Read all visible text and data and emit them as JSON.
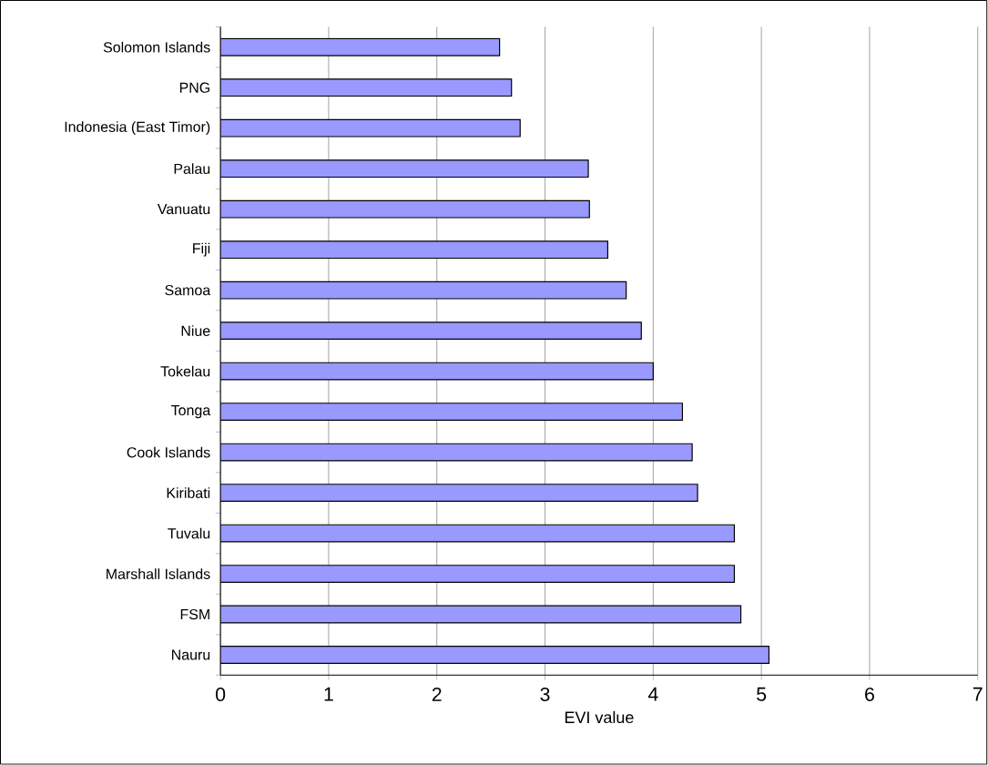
{
  "chart_data": {
    "type": "bar",
    "orientation": "horizontal",
    "categories": [
      "Solomon Islands",
      "PNG",
      "Indonesia (East Timor)",
      "Palau",
      "Vanuatu",
      "Fiji",
      "Samoa",
      "Niue",
      "Tokelau",
      "Tonga",
      "Cook Islands",
      "Kiribati",
      "Tuvalu",
      "Marshall Islands",
      "FSM",
      "Nauru"
    ],
    "values": [
      2.58,
      2.69,
      2.77,
      3.4,
      3.41,
      3.58,
      3.75,
      3.89,
      4.0,
      4.27,
      4.36,
      4.41,
      4.75,
      4.75,
      4.81,
      5.07
    ],
    "color": "#9999ff",
    "xlabel": "EVI value",
    "xlim": [
      0,
      7
    ],
    "xticks": [
      0,
      1,
      2,
      3,
      4,
      5,
      6,
      7
    ],
    "grid": "x"
  }
}
